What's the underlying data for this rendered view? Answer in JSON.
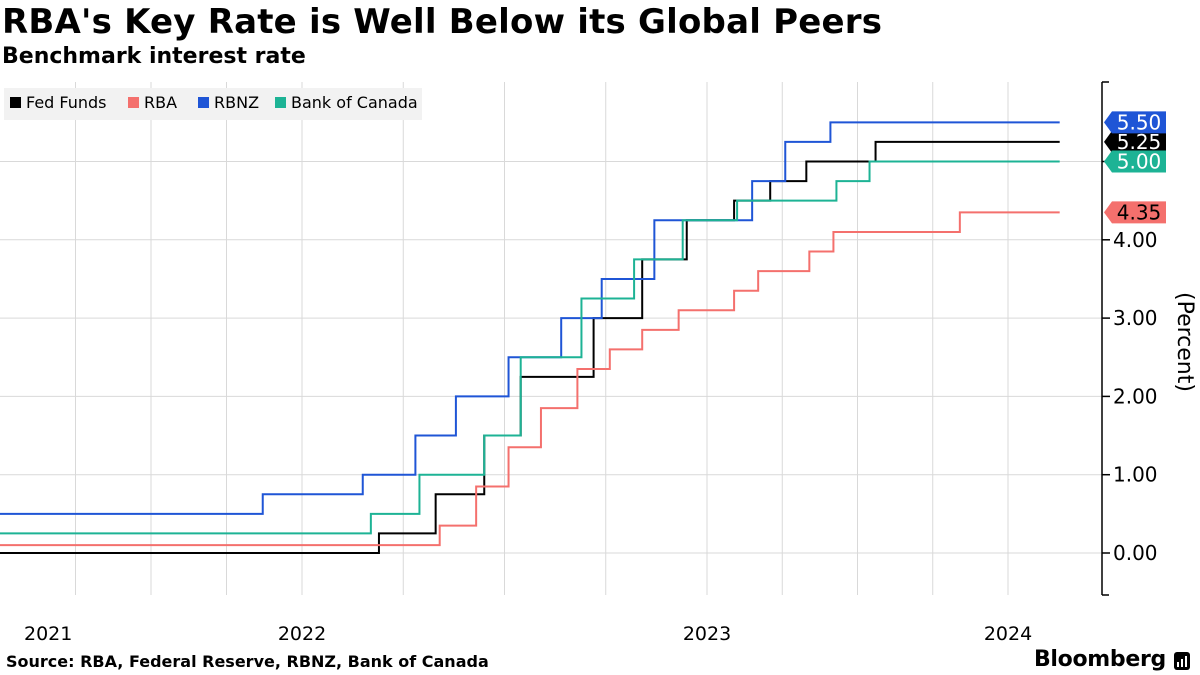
{
  "title": "RBA's Key Rate is Well Below its Global Peers",
  "subtitle": "Benchmark interest rate",
  "source": "Source: RBA, Federal Reserve, RBNZ, Bank of Canada",
  "brand": "Bloomberg",
  "brand_icon": "bloomberg-bars-icon",
  "colors": {
    "background": "#ffffff",
    "grid": "#d9d9d9",
    "axis": "#000000"
  },
  "chart_data": {
    "type": "line",
    "step": true,
    "title": "RBA's Key Rate is Well Below its Global Peers",
    "subtitle": "Benchmark interest rate",
    "ylabel": "(Percent)",
    "xlabel": "",
    "ylim": [
      -0.5,
      6.2
    ],
    "xlim": [
      2021.0,
      2024.3
    ],
    "y_axis_position": "right",
    "y_ticks": [
      0,
      1,
      2,
      3,
      4
    ],
    "y_tick_labels": [
      "0.00",
      "1.00",
      "2.00",
      "3.00",
      "4.00"
    ],
    "x_year_labels": [
      {
        "x": 2021.0,
        "label": "2021"
      },
      {
        "x": 2022.0,
        "label": "2022"
      },
      {
        "x": 2023.0,
        "label": "2023"
      },
      {
        "x": 2024.0,
        "label": "2024"
      }
    ],
    "x_gridlines": [
      2021.25,
      2021.5,
      2021.75,
      2022.0,
      2022.25,
      2022.5,
      2022.75,
      2023.0,
      2023.25,
      2023.5,
      2023.75,
      2024.0
    ],
    "grid": true,
    "legend_position": "top-left",
    "series": [
      {
        "name": "Fed Funds",
        "color": "#000000",
        "last_label": "5.25",
        "points": [
          [
            2020.75,
            0.0
          ],
          [
            2022.19,
            0.25
          ],
          [
            2022.33,
            0.75
          ],
          [
            2022.45,
            1.5
          ],
          [
            2022.54,
            2.25
          ],
          [
            2022.72,
            3.0
          ],
          [
            2022.84,
            3.75
          ],
          [
            2022.95,
            4.25
          ],
          [
            2023.09,
            4.5
          ],
          [
            2023.21,
            4.75
          ],
          [
            2023.33,
            5.0
          ],
          [
            2023.56,
            5.25
          ],
          [
            2024.17,
            5.25
          ]
        ]
      },
      {
        "name": "RBA",
        "color": "#f4706d",
        "last_label": "4.35",
        "points": [
          [
            2020.75,
            0.1
          ],
          [
            2022.34,
            0.35
          ],
          [
            2022.43,
            0.85
          ],
          [
            2022.51,
            1.35
          ],
          [
            2022.59,
            1.85
          ],
          [
            2022.68,
            2.35
          ],
          [
            2022.76,
            2.6
          ],
          [
            2022.84,
            2.85
          ],
          [
            2022.93,
            3.1
          ],
          [
            2023.09,
            3.35
          ],
          [
            2023.17,
            3.6
          ],
          [
            2023.34,
            3.85
          ],
          [
            2023.42,
            4.1
          ],
          [
            2023.84,
            4.35
          ],
          [
            2024.17,
            4.35
          ]
        ]
      },
      {
        "name": "RBNZ",
        "color": "#1f55d6",
        "last_label": "5.50",
        "points": [
          [
            2020.75,
            0.5
          ],
          [
            2021.87,
            0.75
          ],
          [
            2022.15,
            1.0
          ],
          [
            2022.28,
            1.5
          ],
          [
            2022.38,
            2.0
          ],
          [
            2022.51,
            2.5
          ],
          [
            2022.64,
            3.0
          ],
          [
            2022.74,
            3.5
          ],
          [
            2022.87,
            4.25
          ],
          [
            2023.15,
            4.75
          ],
          [
            2023.26,
            5.25
          ],
          [
            2023.41,
            5.5
          ],
          [
            2024.17,
            5.5
          ]
        ]
      },
      {
        "name": "Bank of Canada",
        "color": "#1db395",
        "last_label": "5.00",
        "points": [
          [
            2020.75,
            0.25
          ],
          [
            2022.17,
            0.5
          ],
          [
            2022.29,
            1.0
          ],
          [
            2022.45,
            1.5
          ],
          [
            2022.54,
            2.5
          ],
          [
            2022.69,
            3.25
          ],
          [
            2022.82,
            3.75
          ],
          [
            2022.94,
            4.25
          ],
          [
            2023.1,
            4.5
          ],
          [
            2023.43,
            4.75
          ],
          [
            2023.54,
            5.0
          ],
          [
            2024.17,
            5.0
          ]
        ]
      }
    ]
  }
}
